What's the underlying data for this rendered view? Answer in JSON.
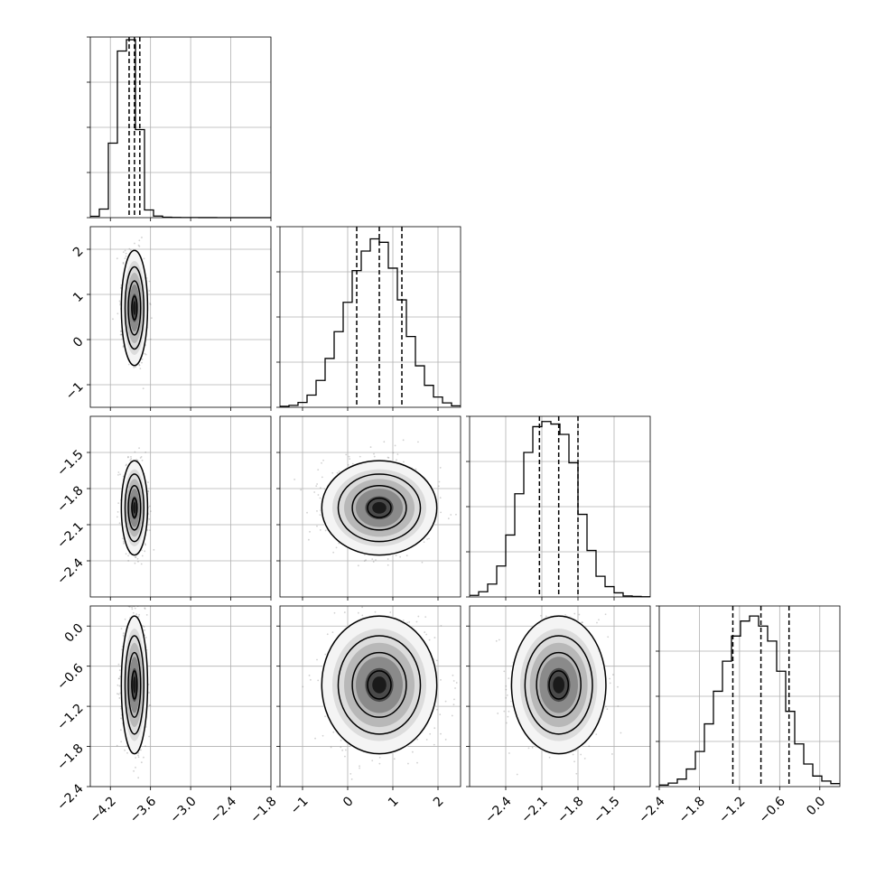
{
  "chart_data": {
    "type": "corner",
    "parameters": [
      {
        "range": [
          -4.5,
          -1.8
        ],
        "ticks": [
          -4.2,
          -3.6,
          -3.0,
          -2.4,
          -1.8
        ],
        "tick_labels": [
          "−4.2",
          "−3.6",
          "−3.0",
          "−2.4",
          "−1.8"
        ],
        "quantiles": [
          -3.92,
          -3.84,
          -3.76
        ],
        "hist_edges": [
          -4.5,
          -4.365,
          -4.23,
          -4.095,
          -3.96,
          -3.825,
          -3.69,
          -3.555,
          -3.42,
          -3.285,
          -3.15,
          -3.015,
          -2.88,
          -2.745,
          -2.61,
          -2.475,
          -2.34,
          -2.205,
          -2.07,
          -1.935,
          -1.8
        ],
        "hist_counts": [
          30,
          190,
          1650,
          3690,
          3940,
          1950,
          170,
          35,
          10,
          5,
          3,
          2,
          1,
          1,
          0,
          0,
          0,
          0,
          0,
          0
        ],
        "hist_max": 4000
      },
      {
        "range": [
          -1.5,
          2.5
        ],
        "ticks": [
          -1,
          0,
          1,
          2
        ],
        "tick_labels": [
          "−1",
          "0",
          "1",
          "2"
        ],
        "quantiles": [
          0.2,
          0.7,
          1.2
        ],
        "hist_edges": [
          -1.5,
          -1.3,
          -1.1,
          -0.9,
          -0.7,
          -0.5,
          -0.3,
          -0.1,
          0.1,
          0.3,
          0.5,
          0.7,
          0.9,
          1.1,
          1.3,
          1.5,
          1.7,
          1.9,
          2.1,
          2.3,
          2.5
        ],
        "hist_counts": [
          20,
          40,
          100,
          250,
          550,
          1000,
          1550,
          2150,
          2800,
          3200,
          3450,
          3380,
          2850,
          2200,
          1450,
          850,
          450,
          210,
          90,
          30
        ],
        "hist_max": 3700
      },
      {
        "range": [
          -2.7,
          -1.2
        ],
        "ticks": [
          -2.4,
          -2.1,
          -1.8,
          -1.5
        ],
        "tick_labels": [
          "−2.4",
          "−2.1",
          "−1.8",
          "−1.5"
        ],
        "quantiles": [
          -2.12,
          -1.96,
          -1.8
        ],
        "hist_edges": [
          -2.7,
          -2.625,
          -2.55,
          -2.475,
          -2.4,
          -2.325,
          -2.25,
          -2.175,
          -2.1,
          -2.025,
          -1.95,
          -1.875,
          -1.8,
          -1.725,
          -1.65,
          -1.575,
          -1.5,
          -1.425,
          -1.35,
          -1.275,
          -1.2
        ],
        "hist_counts": [
          30,
          100,
          250,
          600,
          1200,
          2000,
          2800,
          3300,
          3400,
          3350,
          3150,
          2600,
          1600,
          900,
          400,
          200,
          80,
          20,
          10,
          5
        ],
        "hist_max": 3500
      },
      {
        "range": [
          -2.4,
          0.3
        ],
        "ticks": [
          -2.4,
          -1.8,
          -1.2,
          -0.6,
          0.0
        ],
        "tick_labels": [
          "−2.4",
          "−1.8",
          "−1.2",
          "−0.6",
          "0.0"
        ],
        "quantiles": [
          -1.3,
          -0.88,
          -0.46
        ],
        "hist_edges": [
          -2.4,
          -2.265,
          -2.13,
          -1.995,
          -1.86,
          -1.725,
          -1.59,
          -1.455,
          -1.32,
          -1.185,
          -1.05,
          -0.915,
          -0.78,
          -0.645,
          -0.51,
          -0.375,
          -0.24,
          -0.105,
          0.03,
          0.165,
          0.3
        ],
        "hist_counts": [
          30,
          70,
          150,
          350,
          700,
          1250,
          1900,
          2500,
          3000,
          3300,
          3400,
          3200,
          2900,
          2300,
          1500,
          850,
          450,
          210,
          110,
          60
        ],
        "hist_max": 3600
      }
    ],
    "pairs": [
      {
        "row": 1,
        "col": 0,
        "center": [
          -3.84,
          0.7
        ],
        "sigma": [
          0.08,
          0.52
        ]
      },
      {
        "row": 2,
        "col": 0,
        "center": [
          -3.84,
          -1.96
        ],
        "sigma": [
          0.08,
          0.16
        ]
      },
      {
        "row": 2,
        "col": 1,
        "center": [
          0.7,
          -1.96
        ],
        "sigma": [
          0.52,
          0.16
        ]
      },
      {
        "row": 3,
        "col": 0,
        "center": [
          -3.84,
          -0.88
        ],
        "sigma": [
          0.08,
          0.42
        ]
      },
      {
        "row": 3,
        "col": 1,
        "center": [
          0.7,
          -0.88
        ],
        "sigma": [
          0.52,
          0.42
        ]
      },
      {
        "row": 3,
        "col": 2,
        "center": [
          -1.96,
          -0.88
        ],
        "sigma": [
          0.16,
          0.42
        ]
      }
    ]
  }
}
